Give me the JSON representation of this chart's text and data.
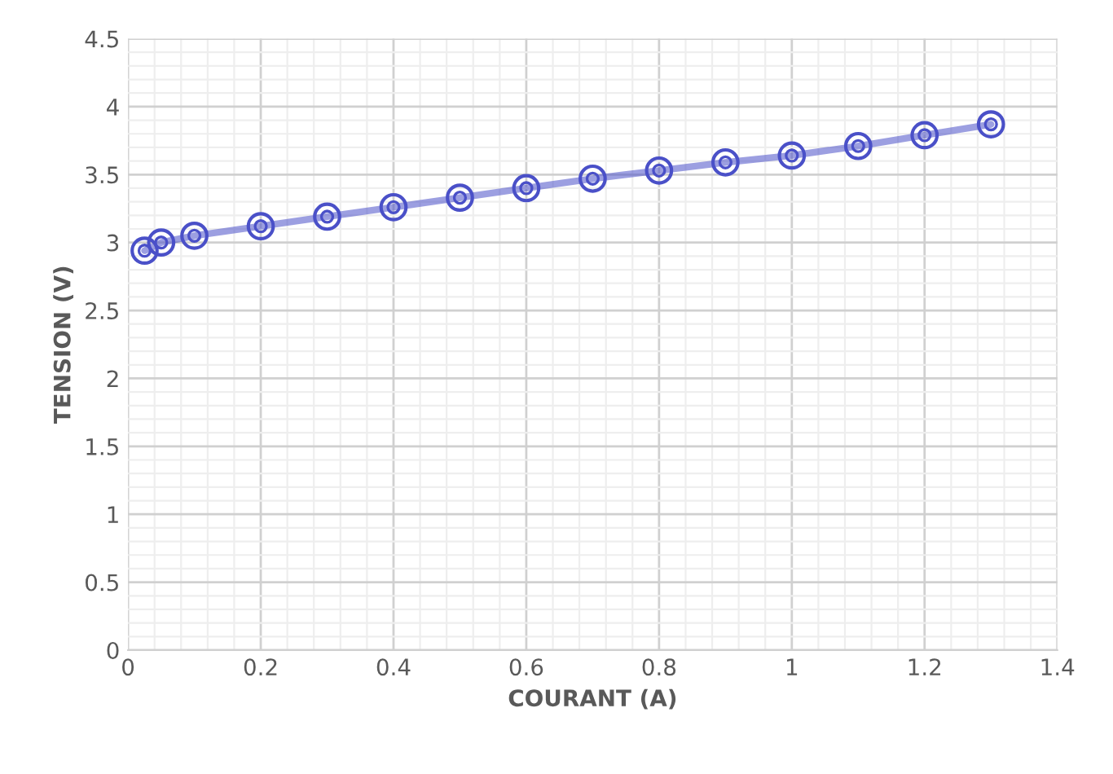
{
  "chart_data": {
    "type": "line",
    "xlabel": "COURANT (A)",
    "ylabel": "TENSION (V)",
    "x": [
      0.025,
      0.05,
      0.1,
      0.2,
      0.3,
      0.4,
      0.5,
      0.6,
      0.7,
      0.8,
      0.9,
      1.0,
      1.1,
      1.2,
      1.3
    ],
    "series": [
      {
        "color": "#4a50c8",
        "values": [
          2.94,
          3.0,
          3.05,
          3.12,
          3.19,
          3.26,
          3.33,
          3.4,
          3.47,
          3.53,
          3.59,
          3.64,
          3.71,
          3.79,
          3.87
        ]
      }
    ],
    "xlim": [
      0,
      1.4
    ],
    "xticks": [
      0,
      0.2,
      0.4,
      0.6,
      0.8,
      1,
      1.2,
      1.4
    ],
    "ylim": [
      0,
      4.5
    ],
    "yticks": [
      0,
      0.5,
      1,
      1.5,
      2,
      2.5,
      3,
      3.5,
      4,
      4.5
    ],
    "grid": true,
    "marker": "circle",
    "line_style": "solid",
    "legend": false
  }
}
